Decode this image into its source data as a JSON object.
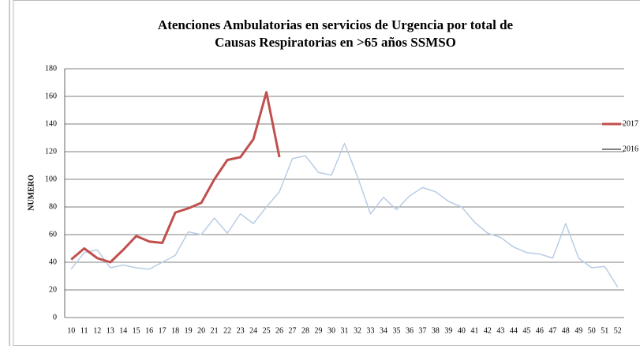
{
  "chart_data": {
    "type": "line",
    "title": [
      "Atenciones Ambulatorias en servicios de Urgencia por total de",
      "Causas Respiratorias en >65 años   SSMSO"
    ],
    "y_label": "NUMERO",
    "categories": [
      "10",
      "11",
      "12",
      "13",
      "14",
      "15",
      "16",
      "17",
      "18",
      "19",
      "20",
      "21",
      "22",
      "23",
      "24",
      "25",
      "26",
      "27",
      "28",
      "29",
      "30",
      "31",
      "32",
      "33",
      "34",
      "35",
      "36",
      "37",
      "38",
      "39",
      "40",
      "41",
      "42",
      "43",
      "44",
      "45",
      "46",
      "47",
      "48",
      "49",
      "50",
      "51",
      "52"
    ],
    "series": [
      {
        "name": "2017",
        "color": "#c0504d",
        "values": [
          42,
          50,
          43,
          40,
          49,
          59,
          55,
          54,
          76,
          79,
          83,
          100,
          114,
          116,
          129,
          163,
          116,
          null,
          null,
          null,
          null,
          null,
          null,
          null,
          null,
          null,
          null,
          null,
          null,
          null,
          null,
          null,
          null,
          null,
          null,
          null,
          null,
          null,
          null,
          null,
          null,
          null,
          null
        ]
      },
      {
        "name": "2016",
        "color": "#b9cde5",
        "values": [
          35,
          47,
          49,
          36,
          38,
          36,
          35,
          40,
          45,
          62,
          60,
          72,
          61,
          75,
          68,
          80,
          91,
          115,
          117,
          105,
          103,
          126,
          102,
          75,
          87,
          78,
          88,
          94,
          91,
          84,
          80,
          69,
          61,
          58,
          51,
          47,
          46,
          43,
          68,
          43,
          36,
          37,
          22
        ]
      }
    ],
    "ylim": [
      0,
      180
    ],
    "yticks": [
      0,
      20,
      40,
      60,
      80,
      100,
      120,
      140,
      160,
      180
    ],
    "grid": true,
    "legend": "right"
  }
}
